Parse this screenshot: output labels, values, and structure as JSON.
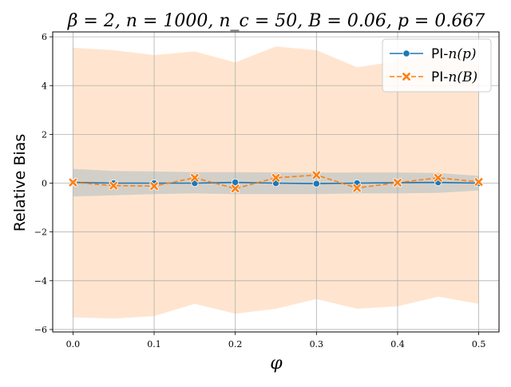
{
  "chart_data": {
    "type": "line",
    "title": "β = 2, n = 1000, n_c = 50, B = 0.06, p = 0.667",
    "xlabel": "φ",
    "ylabel": "Relative Bias",
    "xlim": [
      -0.025,
      0.525
    ],
    "ylim": [
      -6.1,
      6.2
    ],
    "x_ticks": [
      0.0,
      0.1,
      0.2,
      0.3,
      0.4,
      0.5
    ],
    "x_tick_labels": [
      "0.0",
      "0.1",
      "0.2",
      "0.3",
      "0.4",
      "0.5"
    ],
    "y_ticks": [
      -6,
      -4,
      -2,
      0,
      2,
      4,
      6
    ],
    "y_tick_labels": [
      "−6",
      "−4",
      "−2",
      "0",
      "2",
      "4",
      "6"
    ],
    "grid": true,
    "legend_position": "top-right",
    "x": [
      0.0,
      0.05,
      0.1,
      0.15,
      0.2,
      0.25,
      0.3,
      0.35,
      0.4,
      0.45,
      0.5
    ],
    "series": [
      {
        "name": "PI-n(p)",
        "legend_prefix": "PI-",
        "legend_math": "n(p)",
        "color": "#1f77b4",
        "marker": "circle",
        "line_style": "solid",
        "values": [
          0.03,
          0.0,
          0.0,
          0.0,
          0.03,
          0.0,
          -0.02,
          0.0,
          0.02,
          0.03,
          0.0
        ],
        "band_lower": [
          -0.55,
          -0.5,
          -0.45,
          -0.42,
          -0.45,
          -0.45,
          -0.45,
          -0.42,
          -0.42,
          -0.4,
          -0.3
        ],
        "band_upper": [
          0.58,
          0.5,
          0.48,
          0.45,
          0.45,
          0.44,
          0.43,
          0.44,
          0.44,
          0.42,
          0.3
        ]
      },
      {
        "name": "PI-n(B)",
        "legend_prefix": "PI-",
        "legend_math": "n(B)",
        "color": "#ff7f0e",
        "marker": "x",
        "line_style": "dashed",
        "values": [
          0.03,
          -0.1,
          -0.12,
          0.22,
          -0.22,
          0.22,
          0.33,
          -0.2,
          0.02,
          0.22,
          0.05
        ],
        "band_lower": [
          -5.5,
          -5.55,
          -5.45,
          -4.95,
          -5.35,
          -5.15,
          -4.75,
          -5.15,
          -5.05,
          -4.65,
          -4.95
        ],
        "band_upper": [
          5.55,
          5.45,
          5.25,
          5.4,
          4.95,
          5.6,
          5.45,
          4.75,
          5.0,
          5.35,
          4.9
        ]
      }
    ]
  }
}
